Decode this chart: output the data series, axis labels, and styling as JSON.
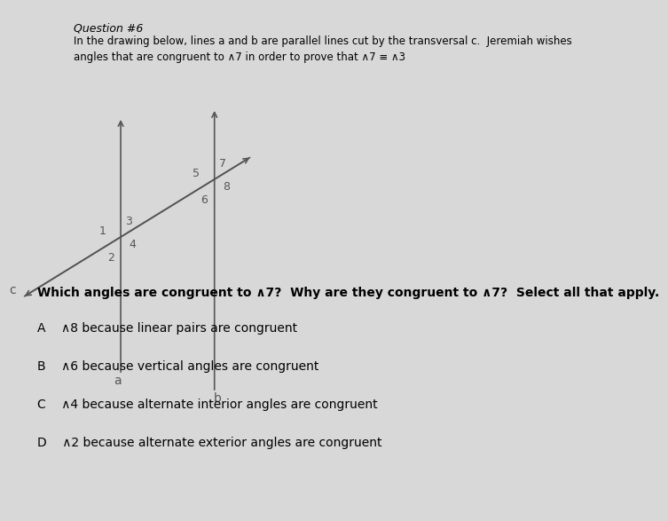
{
  "background_color": "#d8d8d8",
  "title_text": "Question #6",
  "question_text": "In the drawing below, lines a and b are parallel lines cut by the transversal c.  Jeremiah wishes\nangles that are congruent to ∧7 in order to prove that ∧7 ≡ ∧3",
  "choices": [
    "A    ∧8 because linear pairs are congruent",
    "B    ∧6 because vertical angles are congruent",
    "C    ∧4 because alternate interior angles are congruent",
    "D    ∧2 because alternate exterior angles are congruent"
  ],
  "which_angles_text": "Which angles are congruent to ∧7?  Why are they congruent to ∧7?  Select all that apply.",
  "line_color": "#555555",
  "label_color": "#555555",
  "label_fontsize": 9,
  "title_fontsize": 9,
  "question_fontsize": 8.5,
  "choice_fontsize": 10,
  "which_fontsize": 10
}
